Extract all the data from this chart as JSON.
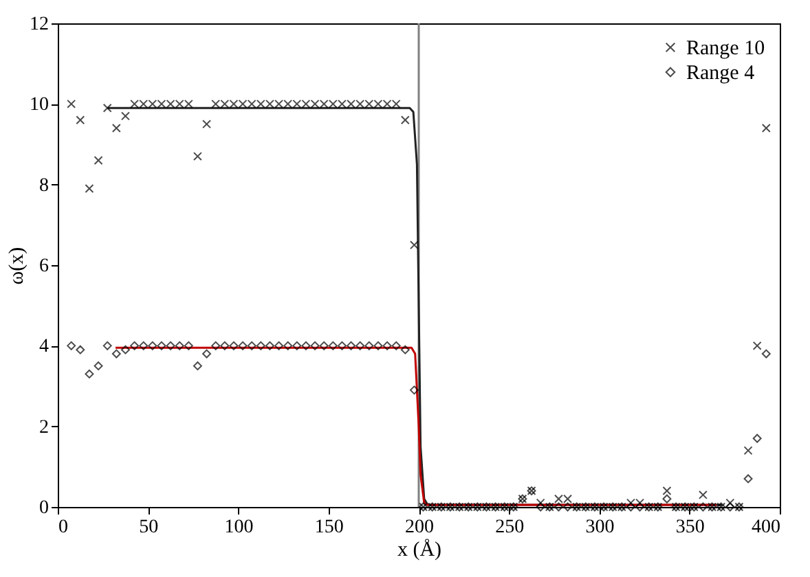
{
  "chart_data": {
    "type": "scatter",
    "xlabel": "x (Å)",
    "ylabel": "ω(x)",
    "x": [
      7.5,
      12.5,
      17.5,
      22.5,
      27.5,
      32.5,
      37.5,
      42.5,
      47.5,
      52.5,
      57.5,
      62.5,
      67.5,
      72.5,
      77.5,
      82.5,
      87.5,
      92.5,
      97.5,
      102.5,
      107.5,
      112.5,
      117.5,
      122.5,
      127.5,
      132.5,
      137.5,
      142.5,
      147.5,
      152.5,
      157.5,
      162.5,
      167.5,
      172.5,
      177.5,
      182.5,
      187.5,
      192.5,
      197.5,
      202.5,
      207.5,
      212.5,
      217.5,
      222.5,
      227.5,
      232.5,
      237.5,
      242.5,
      247.5,
      252.5,
      257.5,
      262.5,
      267.5,
      272.5,
      277.5,
      282.5,
      287.5,
      292.5,
      297.5,
      302.5,
      307.5,
      312.5,
      317.5,
      322.5,
      327.5,
      332.5,
      337.5,
      342.5,
      347.5,
      352.5,
      357.5,
      362.5,
      367.5,
      372.5,
      377.5,
      382.5,
      387.5,
      392.5
    ],
    "series": [
      {
        "name": "Range 10",
        "type": "scatter",
        "marker": "cross",
        "color": "#000000",
        "values": [
          10,
          9.6,
          7.9,
          8.6,
          9.9,
          9.4,
          9.7,
          10,
          10,
          10,
          10,
          10,
          10,
          10,
          8.7,
          9.5,
          10,
          10,
          10,
          10,
          10,
          10,
          10,
          10,
          10,
          10,
          10,
          10,
          10,
          10,
          10,
          10,
          10,
          10,
          10,
          10,
          10,
          9.6,
          6.5,
          0,
          0,
          0,
          0,
          0,
          0,
          0,
          0,
          0,
          0,
          0,
          0.2,
          0.4,
          0.1,
          0,
          0.2,
          0.2,
          0,
          0,
          0,
          0,
          0,
          0,
          0.1,
          0.1,
          0,
          0,
          0.4,
          0,
          0,
          0,
          0.3,
          0,
          0,
          0.1,
          0,
          1.4,
          4.0,
          9.4
        ]
      },
      {
        "name": "Range 4",
        "type": "scatter",
        "marker": "diamond",
        "color": "#000000",
        "values": [
          4.0,
          3.9,
          3.3,
          3.5,
          4.0,
          3.8,
          3.9,
          4.0,
          4.0,
          4.0,
          4.0,
          4.0,
          4.0,
          4.0,
          3.5,
          3.8,
          4.0,
          4.0,
          4.0,
          4.0,
          4.0,
          4.0,
          4.0,
          4.0,
          4.0,
          4.0,
          4.0,
          4.0,
          4.0,
          4.0,
          4.0,
          4.0,
          4.0,
          4.0,
          4.0,
          4.0,
          4.0,
          3.9,
          2.9,
          0,
          0,
          0,
          0,
          0,
          0,
          0,
          0,
          0,
          0,
          0,
          0.2,
          0.4,
          0,
          0,
          0,
          0,
          0,
          0,
          0,
          0,
          0,
          0,
          0,
          0,
          0,
          0,
          0.2,
          0,
          0,
          0,
          0,
          0,
          0,
          0,
          0,
          0.7,
          1.7,
          3.8
        ]
      },
      {
        "type": "line",
        "color": "#222222",
        "x": [
          27.5,
          195,
          197,
          199,
          200,
          201,
          203,
          205,
          368
        ],
        "values": [
          9.9,
          9.9,
          9.8,
          8.5,
          5,
          1.5,
          0.2,
          0.05,
          0.05
        ]
      },
      {
        "type": "line",
        "color": "#c00000",
        "x": [
          32,
          196,
          198,
          200,
          201,
          203,
          205,
          365
        ],
        "values": [
          3.95,
          3.95,
          3.8,
          2,
          0.8,
          0.1,
          0.05,
          0.05
        ]
      }
    ],
    "ref_lines": [
      {
        "axis": "x",
        "value": 200,
        "color": "#808080"
      }
    ],
    "xlim": [
      0,
      400
    ],
    "xticks": [
      0,
      50,
      100,
      150,
      200,
      250,
      300,
      350,
      400
    ],
    "ylim": [
      0,
      12
    ],
    "yticks": [
      0,
      2,
      4,
      6,
      8,
      10,
      12
    ],
    "legend": "top right"
  }
}
